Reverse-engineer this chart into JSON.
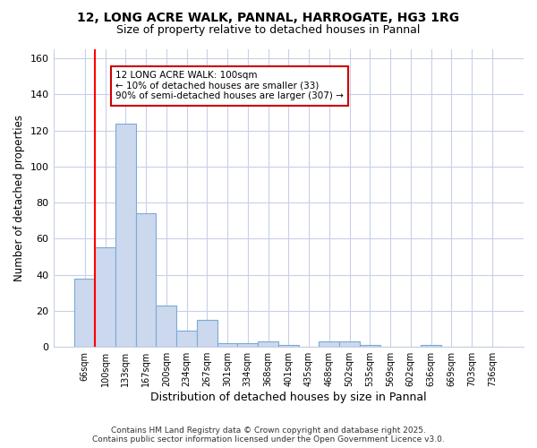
{
  "title1": "12, LONG ACRE WALK, PANNAL, HARROGATE, HG3 1RG",
  "title2": "Size of property relative to detached houses in Pannal",
  "xlabel": "Distribution of detached houses by size in Pannal",
  "ylabel": "Number of detached properties",
  "bins": [
    "66sqm",
    "100sqm",
    "133sqm",
    "167sqm",
    "200sqm",
    "234sqm",
    "267sqm",
    "301sqm",
    "334sqm",
    "368sqm",
    "401sqm",
    "435sqm",
    "468sqm",
    "502sqm",
    "535sqm",
    "569sqm",
    "602sqm",
    "636sqm",
    "669sqm",
    "703sqm",
    "736sqm"
  ],
  "values": [
    38,
    55,
    124,
    74,
    23,
    9,
    15,
    2,
    2,
    3,
    1,
    0,
    3,
    3,
    1,
    0,
    0,
    1,
    0,
    0,
    0
  ],
  "bar_color": "#ccd8ee",
  "bar_edge_color": "#7aabd4",
  "grid_color": "#c8d0e8",
  "bg_color": "#ffffff",
  "fig_bg_color": "#ffffff",
  "red_line_bin_index": 1,
  "annotation_text": "12 LONG ACRE WALK: 100sqm\n← 10% of detached houses are smaller (33)\n90% of semi-detached houses are larger (307) →",
  "annotation_box_color": "#ffffff",
  "annotation_border_color": "#cc0000",
  "footer": "Contains HM Land Registry data © Crown copyright and database right 2025.\nContains public sector information licensed under the Open Government Licence v3.0.",
  "ylim": [
    0,
    165
  ],
  "yticks": [
    0,
    20,
    40,
    60,
    80,
    100,
    120,
    140,
    160
  ]
}
